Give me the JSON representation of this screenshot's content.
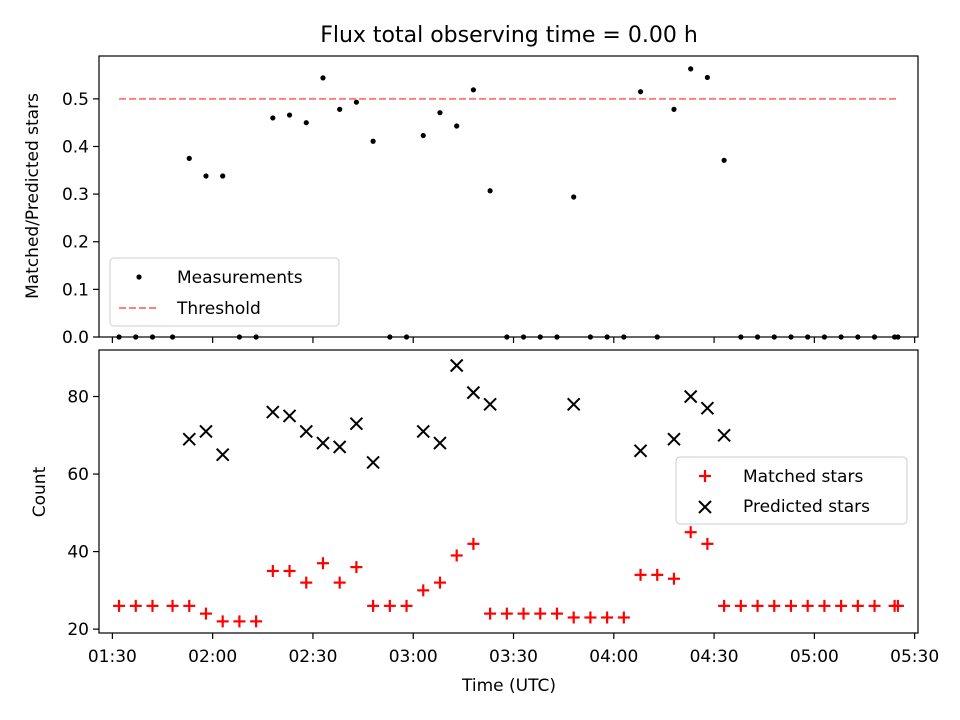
{
  "title": "Flux total observing time = 0.00 h",
  "chart_data": [
    {
      "type": "scatter",
      "panel": "top",
      "ylabel": "Matched/Predicted stars",
      "xlim": [
        "01:26",
        "05:31"
      ],
      "ylim": [
        0,
        0.59
      ],
      "y_ticks": [
        "0.0",
        "0.1",
        "0.2",
        "0.3",
        "0.4",
        "0.5"
      ],
      "grid": false,
      "legend_position": "lower-left",
      "series": [
        {
          "name": "Measurements",
          "marker": "dot",
          "color": "#000000",
          "points": [
            [
              "01:32",
              0
            ],
            [
              "01:37",
              0
            ],
            [
              "01:42",
              0
            ],
            [
              "01:48",
              0
            ],
            [
              "01:53",
              0.375
            ],
            [
              "01:58",
              0.338
            ],
            [
              "02:03",
              0.338
            ],
            [
              "02:08",
              0
            ],
            [
              "02:13",
              0
            ],
            [
              "02:18",
              0.46
            ],
            [
              "02:23",
              0.466
            ],
            [
              "02:28",
              0.45
            ],
            [
              "02:33",
              0.544
            ],
            [
              "02:38",
              0.478
            ],
            [
              "02:43",
              0.493
            ],
            [
              "02:48",
              0.411
            ],
            [
              "02:53",
              0
            ],
            [
              "02:58",
              0
            ],
            [
              "03:03",
              0.423
            ],
            [
              "03:08",
              0.471
            ],
            [
              "03:13",
              0.443
            ],
            [
              "03:18",
              0.519
            ],
            [
              "03:23",
              0.307
            ],
            [
              "03:28",
              0
            ],
            [
              "03:33",
              0
            ],
            [
              "03:38",
              0
            ],
            [
              "03:43",
              0
            ],
            [
              "03:48",
              0.294
            ],
            [
              "03:53",
              0
            ],
            [
              "03:58",
              0
            ],
            [
              "04:03",
              0
            ],
            [
              "04:08",
              0.515
            ],
            [
              "04:13",
              0
            ],
            [
              "04:18",
              0.478
            ],
            [
              "04:23",
              0.563
            ],
            [
              "04:28",
              0.545
            ],
            [
              "04:33",
              0.371
            ],
            [
              "04:38",
              0
            ],
            [
              "04:43",
              0
            ],
            [
              "04:48",
              0
            ],
            [
              "04:53",
              0
            ],
            [
              "04:58",
              0
            ],
            [
              "05:03",
              0
            ],
            [
              "05:08",
              0
            ],
            [
              "05:13",
              0
            ],
            [
              "05:18",
              0
            ],
            [
              "05:24",
              0
            ],
            [
              "05:25",
              0
            ]
          ]
        },
        {
          "name": "Threshold",
          "style": "dashed-line",
          "color": "#ff7f7f",
          "points": [
            [
              "01:32",
              0.5
            ],
            [
              "05:25",
              0.5
            ]
          ]
        }
      ]
    },
    {
      "type": "scatter",
      "panel": "bottom",
      "xlabel": "Time (UTC)",
      "ylabel": "Count",
      "xlim": [
        "01:26",
        "05:31"
      ],
      "ylim": [
        19,
        92
      ],
      "x_ticks": [
        "01:30",
        "02:00",
        "02:30",
        "03:00",
        "03:30",
        "04:00",
        "04:30",
        "05:00",
        "05:30"
      ],
      "y_ticks": [
        "20",
        "40",
        "60",
        "80"
      ],
      "grid": false,
      "legend_position": "center-right",
      "series": [
        {
          "name": "Matched stars",
          "marker": "plus",
          "color": "#ff0000",
          "points": [
            [
              "01:32",
              26
            ],
            [
              "01:37",
              26
            ],
            [
              "01:42",
              26
            ],
            [
              "01:48",
              26
            ],
            [
              "01:53",
              26
            ],
            [
              "01:58",
              24
            ],
            [
              "02:03",
              22
            ],
            [
              "02:08",
              22
            ],
            [
              "02:13",
              22
            ],
            [
              "02:18",
              35
            ],
            [
              "02:23",
              35
            ],
            [
              "02:28",
              32
            ],
            [
              "02:33",
              37
            ],
            [
              "02:38",
              32
            ],
            [
              "02:43",
              36
            ],
            [
              "02:48",
              26
            ],
            [
              "02:53",
              26
            ],
            [
              "02:58",
              26
            ],
            [
              "03:03",
              30
            ],
            [
              "03:08",
              32
            ],
            [
              "03:13",
              39
            ],
            [
              "03:18",
              42
            ],
            [
              "03:23",
              24
            ],
            [
              "03:28",
              24
            ],
            [
              "03:33",
              24
            ],
            [
              "03:38",
              24
            ],
            [
              "03:43",
              24
            ],
            [
              "03:48",
              23
            ],
            [
              "03:53",
              23
            ],
            [
              "03:58",
              23
            ],
            [
              "04:03",
              23
            ],
            [
              "04:08",
              34
            ],
            [
              "04:13",
              34
            ],
            [
              "04:18",
              33
            ],
            [
              "04:23",
              45
            ],
            [
              "04:28",
              42
            ],
            [
              "04:33",
              26
            ],
            [
              "04:38",
              26
            ],
            [
              "04:43",
              26
            ],
            [
              "04:48",
              26
            ],
            [
              "04:53",
              26
            ],
            [
              "04:58",
              26
            ],
            [
              "05:03",
              26
            ],
            [
              "05:08",
              26
            ],
            [
              "05:13",
              26
            ],
            [
              "05:18",
              26
            ],
            [
              "05:24",
              26
            ],
            [
              "05:25",
              26
            ]
          ]
        },
        {
          "name": "Predicted stars",
          "marker": "x",
          "color": "#000000",
          "points": [
            [
              "01:53",
              69
            ],
            [
              "01:58",
              71
            ],
            [
              "02:03",
              65
            ],
            [
              "02:18",
              76
            ],
            [
              "02:23",
              75
            ],
            [
              "02:28",
              71
            ],
            [
              "02:33",
              68
            ],
            [
              "02:38",
              67
            ],
            [
              "02:43",
              73
            ],
            [
              "02:48",
              63
            ],
            [
              "03:03",
              71
            ],
            [
              "03:08",
              68
            ],
            [
              "03:13",
              88
            ],
            [
              "03:18",
              81
            ],
            [
              "03:23",
              78
            ],
            [
              "03:48",
              78
            ],
            [
              "04:08",
              66
            ],
            [
              "04:18",
              69
            ],
            [
              "04:23",
              80
            ],
            [
              "04:28",
              77
            ],
            [
              "04:33",
              70
            ]
          ]
        }
      ]
    }
  ]
}
